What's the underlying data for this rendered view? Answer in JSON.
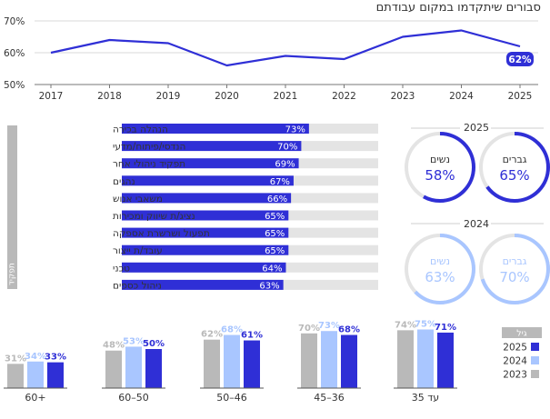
{
  "colors": {
    "dark": "#2f2fd6",
    "mid": "#a9c6ff",
    "gray": "#b9b9b9",
    "track": "#e4e4e4",
    "axis": "#888888",
    "text": "#333333"
  },
  "chart_data": [
    {
      "type": "line",
      "title": "סבורים שיתקדמו במקום עבודתם",
      "x": [
        "2017",
        "2018",
        "2019",
        "2020",
        "2021",
        "2022",
        "2023",
        "2024",
        "2025"
      ],
      "series": [
        {
          "values": [
            60,
            64,
            63,
            56,
            59,
            58,
            65,
            67,
            62
          ]
        }
      ],
      "ylim": [
        50,
        70
      ],
      "yticks": [
        "50%",
        "60%",
        "70%"
      ],
      "last_label": "62%"
    },
    {
      "type": "bar",
      "side_label": "תפקיד",
      "categories": [
        "הנהלה בכירה",
        "הנדסי/פיתוח/מדעי",
        "תפקיד ניהולי אחר",
        "נהגים",
        "משאבי אנוש",
        "נציג/ת שיווק ומכירות",
        "תפעול ושרשרת אספקה",
        "עובד/ת ייצור",
        "טכני",
        "ניהול כספים"
      ],
      "values": [
        73,
        70,
        69,
        67,
        66,
        65,
        65,
        65,
        64,
        63
      ],
      "labels": [
        "73%",
        "70%",
        "69%",
        "67%",
        "66%",
        "65%",
        "65%",
        "65%",
        "64%",
        "63%"
      ],
      "xlim": [
        0,
        100
      ]
    },
    {
      "type": "pie",
      "groups": [
        {
          "year": "2025",
          "items": [
            {
              "label": "גברים",
              "value": 65,
              "text": "65%"
            },
            {
              "label": "נשים",
              "value": 58,
              "text": "58%"
            }
          ]
        },
        {
          "year": "2024",
          "items": [
            {
              "label": "גברים",
              "value": 70,
              "text": "70%"
            },
            {
              "label": "נשים",
              "value": 63,
              "text": "63%"
            }
          ]
        }
      ]
    },
    {
      "type": "bar",
      "legend_title": "גיל",
      "legend": [
        "2025",
        "2024",
        "2023"
      ],
      "categories": [
        "+60",
        "50–60",
        "46–50",
        "36–45",
        "עד 35"
      ],
      "series": [
        {
          "name": "2023",
          "values": [
            31,
            48,
            62,
            70,
            74
          ],
          "labels": [
            "31%",
            "48%",
            "62%",
            "70%",
            "74%"
          ]
        },
        {
          "name": "2024",
          "values": [
            34,
            53,
            68,
            73,
            75
          ],
          "labels": [
            "34%",
            "53%",
            "68%",
            "73%",
            "75%"
          ]
        },
        {
          "name": "2025",
          "values": [
            33,
            50,
            61,
            68,
            71
          ],
          "labels": [
            "33%",
            "50%",
            "61%",
            "68%",
            "71%"
          ]
        }
      ],
      "ylim": [
        0,
        100
      ]
    }
  ]
}
